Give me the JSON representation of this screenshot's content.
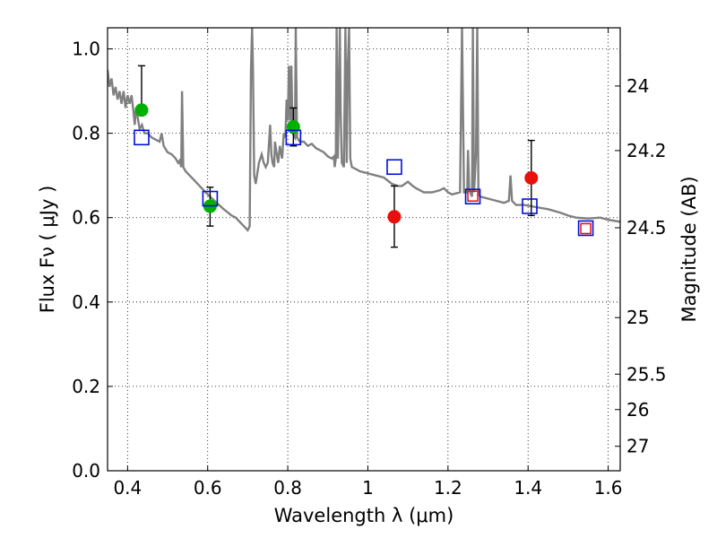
{
  "chart_data": {
    "type": "scatter",
    "xlabel": "Wavelength  λ (μm)",
    "ylabel": "Flux  Fν  ( μJy )",
    "ylabel_right": "Magnitude (AB)",
    "xlim": [
      0.35,
      1.63
    ],
    "ylim": [
      0.0,
      1.05
    ],
    "grid": true,
    "x_ticks": [
      0.4,
      0.6,
      0.8,
      1.0,
      1.2,
      1.4,
      1.6
    ],
    "x_tick_labels": [
      "0.4",
      "0.6",
      "0.8",
      "1",
      "1.2",
      "1.4",
      "1.6"
    ],
    "y_ticks": [
      0.0,
      0.2,
      0.4,
      0.6,
      0.8,
      1.0
    ],
    "y_tick_labels": [
      "0.0",
      "0.2",
      "0.4",
      "0.6",
      "0.8",
      "1.0"
    ],
    "right_axis_ticks": [
      {
        "label": "24",
        "flux": 0.912
      },
      {
        "label": "24.2",
        "flux": 0.759
      },
      {
        "label": "24.5",
        "flux": 0.576
      },
      {
        "label": "25",
        "flux": 0.363
      },
      {
        "label": "25.5",
        "flux": 0.229
      },
      {
        "label": "26",
        "flux": 0.145
      },
      {
        "label": "27",
        "flux": 0.058
      }
    ],
    "colors": {
      "green": "#00b000",
      "red": "#e8100c",
      "blue": "#0010d8",
      "model": "#808080",
      "errorbar": "#000000"
    },
    "series": [
      {
        "marker": "green-circle",
        "points": [
          {
            "x": 0.435,
            "y": 0.855,
            "yerr_low": null,
            "yerr_high": 0.96
          },
          {
            "x": 0.606,
            "y": 0.627,
            "yerr_low": 0.58,
            "yerr_high": 0.672
          },
          {
            "x": 0.814,
            "y": 0.815,
            "yerr_low": 0.77,
            "yerr_high": 0.86
          }
        ]
      },
      {
        "marker": "red-circle",
        "points": [
          {
            "x": 1.066,
            "y": 0.602,
            "yerr_low": 0.53,
            "yerr_high": 0.675
          },
          {
            "x": 1.408,
            "y": 0.694,
            "yerr_low": 0.605,
            "yerr_high": 0.783
          }
        ]
      },
      {
        "marker": "red-square",
        "points": [
          {
            "x": 1.262,
            "y": 0.651
          },
          {
            "x": 1.544,
            "y": 0.574
          }
        ]
      },
      {
        "marker": "blue-open-square",
        "points": [
          {
            "x": 0.435,
            "y": 0.79
          },
          {
            "x": 0.606,
            "y": 0.645
          },
          {
            "x": 0.814,
            "y": 0.79
          },
          {
            "x": 1.066,
            "y": 0.72
          },
          {
            "x": 1.262,
            "y": 0.65
          },
          {
            "x": 1.404,
            "y": 0.627
          },
          {
            "x": 1.544,
            "y": 0.575
          }
        ]
      }
    ],
    "model_spectrum": [
      [
        0.35,
        0.95
      ],
      [
        0.355,
        0.91
      ],
      [
        0.36,
        0.93
      ],
      [
        0.365,
        0.89
      ],
      [
        0.37,
        0.91
      ],
      [
        0.375,
        0.88
      ],
      [
        0.38,
        0.9
      ],
      [
        0.385,
        0.87
      ],
      [
        0.39,
        0.9
      ],
      [
        0.395,
        0.86
      ],
      [
        0.4,
        0.89
      ],
      [
        0.405,
        0.87
      ],
      [
        0.41,
        0.89
      ],
      [
        0.415,
        0.85
      ],
      [
        0.418,
        0.82
      ],
      [
        0.421,
        0.86
      ],
      [
        0.425,
        0.84
      ],
      [
        0.43,
        0.81
      ],
      [
        0.436,
        0.82
      ],
      [
        0.442,
        0.8
      ],
      [
        0.45,
        0.8
      ],
      [
        0.46,
        0.79
      ],
      [
        0.47,
        0.785
      ],
      [
        0.48,
        0.78
      ],
      [
        0.485,
        0.8
      ],
      [
        0.49,
        0.77
      ],
      [
        0.5,
        0.755
      ],
      [
        0.51,
        0.75
      ],
      [
        0.52,
        0.74
      ],
      [
        0.526,
        0.73
      ],
      [
        0.53,
        0.735
      ],
      [
        0.534,
        0.72
      ],
      [
        0.536,
        0.9
      ],
      [
        0.539,
        0.72
      ],
      [
        0.545,
        0.71
      ],
      [
        0.555,
        0.7
      ],
      [
        0.57,
        0.685
      ],
      [
        0.585,
        0.67
      ],
      [
        0.6,
        0.655
      ],
      [
        0.62,
        0.637
      ],
      [
        0.64,
        0.62
      ],
      [
        0.66,
        0.605
      ],
      [
        0.67,
        0.6
      ],
      [
        0.68,
        0.59
      ],
      [
        0.69,
        0.58
      ],
      [
        0.7,
        0.57
      ],
      [
        0.705,
        0.58
      ],
      [
        0.708,
        0.95
      ],
      [
        0.711,
        1.05
      ],
      [
        0.713,
        0.96
      ],
      [
        0.716,
        0.7
      ],
      [
        0.72,
        0.68
      ],
      [
        0.728,
        0.73
      ],
      [
        0.735,
        0.75
      ],
      [
        0.74,
        0.73
      ],
      [
        0.745,
        0.72
      ],
      [
        0.75,
        0.73
      ],
      [
        0.756,
        0.82
      ],
      [
        0.759,
        0.75
      ],
      [
        0.762,
        0.73
      ],
      [
        0.766,
        0.72
      ],
      [
        0.768,
        0.78
      ],
      [
        0.771,
        0.76
      ],
      [
        0.776,
        0.73
      ],
      [
        0.78,
        0.77
      ],
      [
        0.786,
        0.74
      ],
      [
        0.79,
        0.8
      ],
      [
        0.794,
        0.79
      ],
      [
        0.797,
        0.88
      ],
      [
        0.8,
        0.83
      ],
      [
        0.803,
        0.96
      ],
      [
        0.806,
        0.83
      ],
      [
        0.809,
        0.96
      ],
      [
        0.812,
        0.8
      ],
      [
        0.818,
        0.79
      ],
      [
        0.82,
        1.05
      ],
      [
        0.823,
        0.79
      ],
      [
        0.83,
        0.78
      ],
      [
        0.84,
        0.78
      ],
      [
        0.85,
        0.77
      ],
      [
        0.86,
        0.775
      ],
      [
        0.87,
        0.765
      ],
      [
        0.88,
        0.76
      ],
      [
        0.89,
        0.755
      ],
      [
        0.9,
        0.745
      ],
      [
        0.91,
        0.74
      ],
      [
        0.915,
        0.745
      ],
      [
        0.917,
        0.72
      ],
      [
        0.92,
        0.74
      ],
      [
        0.922,
        1.05
      ],
      [
        0.925,
        0.74
      ],
      [
        0.93,
        1.05
      ],
      [
        0.932,
        0.85
      ],
      [
        0.935,
        0.73
      ],
      [
        0.94,
        0.72
      ],
      [
        0.944,
        1.05
      ],
      [
        0.947,
        0.73
      ],
      [
        0.95,
        0.96
      ],
      [
        0.953,
        1.05
      ],
      [
        0.956,
        0.74
      ],
      [
        0.96,
        0.72
      ],
      [
        0.97,
        0.715
      ],
      [
        0.98,
        0.71
      ],
      [
        1.0,
        0.705
      ],
      [
        1.02,
        0.7
      ],
      [
        1.04,
        0.695
      ],
      [
        1.06,
        0.68
      ],
      [
        1.075,
        0.675
      ],
      [
        1.085,
        0.675
      ],
      [
        1.1,
        0.685
      ],
      [
        1.112,
        0.675
      ],
      [
        1.12,
        0.67
      ],
      [
        1.14,
        0.66
      ],
      [
        1.16,
        0.66
      ],
      [
        1.18,
        0.665
      ],
      [
        1.19,
        0.67
      ],
      [
        1.2,
        0.66
      ],
      [
        1.21,
        0.655
      ],
      [
        1.23,
        0.66
      ],
      [
        1.235,
        1.05
      ],
      [
        1.24,
        0.66
      ],
      [
        1.248,
        0.66
      ],
      [
        1.25,
        0.76
      ],
      [
        1.253,
        0.665
      ],
      [
        1.26,
        0.65
      ],
      [
        1.262,
        1.05
      ],
      [
        1.265,
        0.66
      ],
      [
        1.27,
        0.75
      ],
      [
        1.273,
        1.05
      ],
      [
        1.276,
        0.66
      ],
      [
        1.28,
        0.65
      ],
      [
        1.3,
        0.645
      ],
      [
        1.32,
        0.64
      ],
      [
        1.34,
        0.635
      ],
      [
        1.352,
        0.64
      ],
      [
        1.356,
        0.7
      ],
      [
        1.36,
        0.64
      ],
      [
        1.37,
        0.63
      ],
      [
        1.39,
        0.63
      ],
      [
        1.42,
        0.625
      ],
      [
        1.45,
        0.62
      ],
      [
        1.48,
        0.612
      ],
      [
        1.5,
        0.605
      ],
      [
        1.52,
        0.6
      ],
      [
        1.55,
        0.598
      ],
      [
        1.58,
        0.6
      ],
      [
        1.6,
        0.595
      ],
      [
        1.63,
        0.59
      ]
    ]
  }
}
